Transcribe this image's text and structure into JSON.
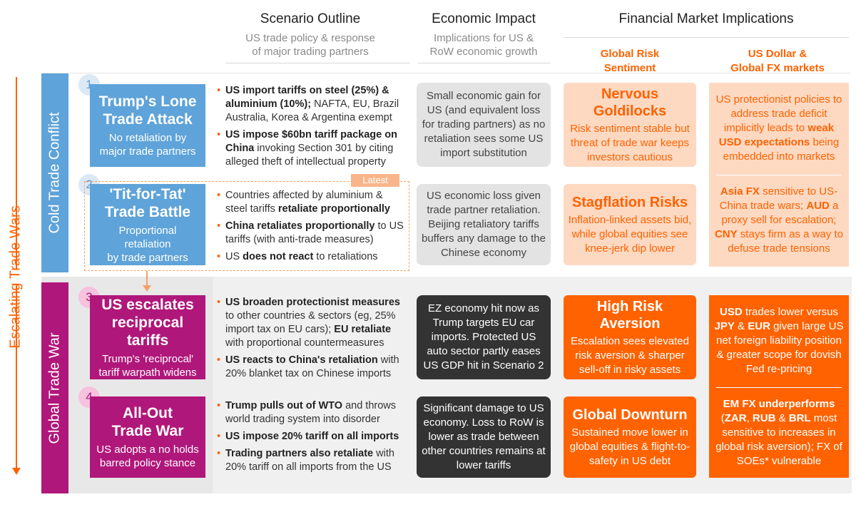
{
  "headers": {
    "scenario": {
      "title": "Scenario Outline",
      "subtitle": "US trade policy & response\nof major trading partners"
    },
    "economic": {
      "title": "Economic Impact",
      "subtitle": "Implications for US &\nRoW economic growth"
    },
    "financial": {
      "title": "Financial Market Implications"
    },
    "risk": "Global Risk\nSentiment",
    "fx": "US Dollar &\nGlobal FX markets"
  },
  "axis_label": "Escalating Trade Wars",
  "phases": {
    "cold": "Cold Trade Conflict",
    "global": "Global Trade War"
  },
  "latest_tag": "Latest",
  "scenarios": [
    {
      "num": "1",
      "title": "Trump's Lone\nTrade Attack",
      "desc": "No retaliation by\nmajor trade partners"
    },
    {
      "num": "2",
      "title": "'Tit-for-Tat'\nTrade Battle",
      "desc": "Proportional retaliation\nby trade partners"
    },
    {
      "num": "3",
      "title": "US escalates\nreciprocal tariffs",
      "desc": "Trump's 'reciprocal'\ntariff warpath widens"
    },
    {
      "num": "4",
      "title": "All-Out\nTrade War",
      "desc": "US adopts a no holds\nbarred policy stance"
    }
  ],
  "outlines": [
    [
      {
        "bold": "US import tariffs on steel (25%) & aluminium (10%);",
        "rest": " NAFTA, EU, Brazil Australia, Korea & Argentina exempt"
      },
      {
        "bold": "US impose $60bn tariff package on China",
        "rest": " invoking Section 301 by citing alleged theft of intellectual property"
      }
    ],
    [
      {
        "pre": "Countries affected by aluminium & steel tariffs ",
        "bold": "retaliate proportionally",
        "rest": ""
      },
      {
        "pre": "",
        "bold": "China retaliates proportionally",
        "rest": " to US tariffs (with anti-trade measures)"
      },
      {
        "pre": "US ",
        "bold": "does not react",
        "rest": " to retaliations"
      }
    ],
    [
      {
        "pre": "",
        "bold": "US broaden protectionist measures",
        "rest": " to other countries & sectors (eg, 25% import tax on EU cars); ",
        "bold2": "EU retaliate",
        "rest2": " with proportional countermeasures"
      },
      {
        "pre": "",
        "bold": "US reacts to China's retaliation",
        "rest": " with 20% blanket tax on Chinese imports"
      }
    ],
    [
      {
        "pre": "",
        "bold": "Trump pulls out of WTO",
        "rest": " and throws world trading system into disorder"
      },
      {
        "pre": "",
        "bold": "US impose 20% tariff on all imports",
        "rest": ""
      },
      {
        "pre": "",
        "bold": "Trading partners also retaliate",
        "rest": " with 20% tariff on all imports from the US"
      }
    ]
  ],
  "economic": [
    "Small economic gain for US (and equivalent loss for trading partners) as no retaliation sees some US import substitution",
    "US economic loss given trade partner retaliation. Beijing retaliatory tariffs buffers any damage to the Chinese economy",
    "EZ economy hit now as Trump targets EU car imports. Protected US auto sector partly eases US GDP hit in Scenario 2",
    "Significant damage to US economy. Loss to RoW is lower as trade between other countries remains at lower tariffs"
  ],
  "risk": [
    {
      "title": "Nervous Goldilocks",
      "text": "Risk sentiment stable but threat of trade war keeps investors cautious"
    },
    {
      "title": "Stagflation Risks",
      "text": "Inflation-linked assets bid, while global equities see knee-jerk dip lower"
    },
    {
      "title": "High Risk Aversion",
      "text": "Escalation sees elevated risk aversion & sharper sell-off in risky assets"
    },
    {
      "title": "Global Downturn",
      "text": "Sustained move lower in global equities & flight-to-safety in US debt"
    }
  ],
  "fx": [
    {
      "p1": "US protectionist policies to address trade deficit implicitly leads to ",
      "b1": "weak USD expectations",
      "p2": " being embedded into markets"
    },
    {
      "b0": "Asia FX",
      "p1": " sensitive to US-China trade wars; ",
      "b1": "AUD",
      "p2": " a proxy sell for escalation; ",
      "b2": "CNY",
      "p3": " stays firm as a way to defuse trade tensions"
    },
    {
      "b0": "USD",
      "p1": " trades lower versus ",
      "b1": "JPY",
      "p2": " & ",
      "b2": "EUR",
      "p3": " given large US net foreign liability position & greater scope for dovish Fed re-pricing"
    },
    {
      "b0": "EM FX underperforms",
      "p1": " (",
      "b1": "ZAR",
      "p2": ", ",
      "b2": "RUB",
      "p3": " & ",
      "b3": "BRL",
      "p4": " most sensitive to increases in global risk aversion); FX of SOEs* vulnerable"
    }
  ],
  "colors": {
    "blue": "#5ea3d9",
    "blue_light": "#dce9f5",
    "magenta": "#b0177a",
    "pink": "#f6c2de",
    "orange": "#ff6200",
    "orange_light": "#fdd9c2",
    "gray_box": "#e3e3e3",
    "dark_box": "#333333"
  }
}
